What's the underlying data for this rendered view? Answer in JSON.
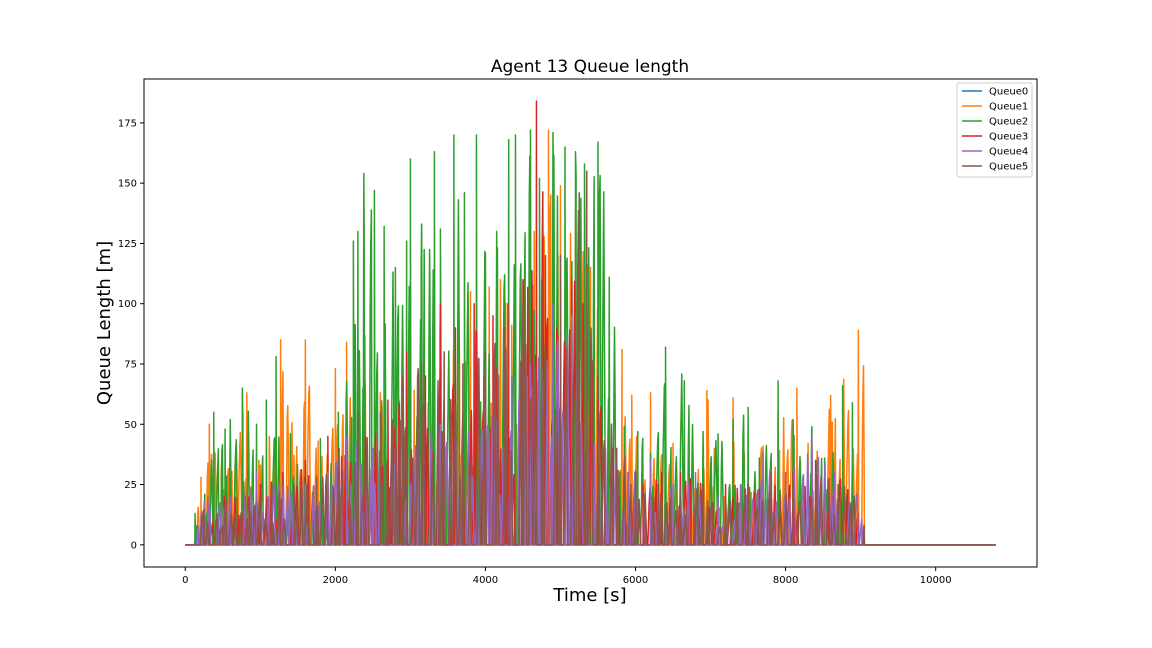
{
  "chart_data": {
    "type": "line",
    "title": "Agent 13 Queue length",
    "xlabel": "Time [s]",
    "ylabel": "Queue Length [m]",
    "xlim": [
      -550,
      11350
    ],
    "ylim": [
      -9.2,
      193.2
    ],
    "xticks": [
      0,
      2000,
      4000,
      6000,
      8000,
      10000
    ],
    "yticks": [
      0,
      25,
      50,
      75,
      100,
      125,
      150,
      175
    ],
    "legend_position": "top-right",
    "grid": false,
    "total_duration": 10800,
    "series": [
      {
        "name": "Queue0",
        "color": "#1f77b4",
        "x": [
          0,
          10800
        ],
        "values": [
          0,
          0
        ]
      },
      {
        "name": "Queue1",
        "color": "#ff7f0e",
        "active_range": [
          150,
          9050
        ],
        "seed": 11,
        "density": 0.55,
        "peaks": [
          [
            210,
            28
          ],
          [
            320,
            50
          ],
          [
            480,
            33
          ],
          [
            600,
            43
          ],
          [
            820,
            63
          ],
          [
            1000,
            33
          ],
          [
            1120,
            45
          ],
          [
            1270,
            85
          ],
          [
            1450,
            37
          ],
          [
            1600,
            85
          ],
          [
            1770,
            43
          ],
          [
            2000,
            73
          ],
          [
            2150,
            84
          ],
          [
            2400,
            67
          ],
          [
            2600,
            63
          ],
          [
            2850,
            60
          ],
          [
            3050,
            64
          ],
          [
            3300,
            90
          ],
          [
            3450,
            77
          ],
          [
            3650,
            93
          ],
          [
            3800,
            105
          ],
          [
            4050,
            107
          ],
          [
            4200,
            110
          ],
          [
            4350,
            91
          ],
          [
            4500,
            73
          ],
          [
            4650,
            130
          ],
          [
            4840,
            172
          ],
          [
            5000,
            149
          ],
          [
            5200,
            137
          ],
          [
            5400,
            115
          ],
          [
            5650,
            54
          ],
          [
            5820,
            81
          ],
          [
            5950,
            62
          ],
          [
            6200,
            63
          ],
          [
            6500,
            42
          ],
          [
            6650,
            28
          ],
          [
            6950,
            64
          ],
          [
            7050,
            40
          ],
          [
            7300,
            61
          ],
          [
            7450,
            38
          ],
          [
            7700,
            41
          ],
          [
            7900,
            55
          ],
          [
            8150,
            65
          ],
          [
            8300,
            42
          ],
          [
            8600,
            62
          ],
          [
            8970,
            89
          ],
          [
            9050,
            69
          ]
        ]
      },
      {
        "name": "Queue2",
        "color": "#2ca02c",
        "active_range": [
          120,
          8900
        ],
        "seed": 23,
        "density": 0.6,
        "peaks": [
          [
            130,
            13
          ],
          [
            260,
            21
          ],
          [
            380,
            55
          ],
          [
            530,
            48
          ],
          [
            760,
            65
          ],
          [
            950,
            50
          ],
          [
            1080,
            60
          ],
          [
            1210,
            78
          ],
          [
            1400,
            46
          ],
          [
            1590,
            28
          ],
          [
            1800,
            44
          ],
          [
            2040,
            55
          ],
          [
            2240,
            126
          ],
          [
            2300,
            130
          ],
          [
            2380,
            154
          ],
          [
            2520,
            147
          ],
          [
            2650,
            132
          ],
          [
            2800,
            115
          ],
          [
            2950,
            126
          ],
          [
            3000,
            160
          ],
          [
            3150,
            133
          ],
          [
            3320,
            163
          ],
          [
            3400,
            131
          ],
          [
            3580,
            170
          ],
          [
            3720,
            146
          ],
          [
            3880,
            170
          ],
          [
            4000,
            121
          ],
          [
            4150,
            130
          ],
          [
            4310,
            168
          ],
          [
            4400,
            170
          ],
          [
            4600,
            172
          ],
          [
            4720,
            152
          ],
          [
            4900,
            171
          ],
          [
            5060,
            165
          ],
          [
            5200,
            163
          ],
          [
            5320,
            158
          ],
          [
            5500,
            167
          ],
          [
            5650,
            111
          ],
          [
            5850,
            49
          ],
          [
            6030,
            47
          ],
          [
            6200,
            38
          ],
          [
            6400,
            82
          ],
          [
            6650,
            68
          ],
          [
            6900,
            47
          ],
          [
            7100,
            46
          ],
          [
            7300,
            52
          ],
          [
            7500,
            57
          ],
          [
            7650,
            36
          ],
          [
            7900,
            68
          ],
          [
            8100,
            52
          ],
          [
            8350,
            49
          ],
          [
            8520,
            36
          ],
          [
            8760,
            66
          ],
          [
            8890,
            59
          ]
        ]
      },
      {
        "name": "Queue3",
        "color": "#d62728",
        "active_range": [
          300,
          9050
        ],
        "seed": 37,
        "density": 0.5,
        "peaks": [
          [
            320,
            12
          ],
          [
            520,
            20
          ],
          [
            800,
            20
          ],
          [
            1000,
            25
          ],
          [
            1300,
            30
          ],
          [
            1600,
            35
          ],
          [
            1900,
            45
          ],
          [
            2130,
            37
          ],
          [
            2400,
            45
          ],
          [
            2700,
            60
          ],
          [
            2950,
            80
          ],
          [
            3200,
            70
          ],
          [
            3400,
            100
          ],
          [
            3600,
            90
          ],
          [
            3850,
            100
          ],
          [
            4100,
            95
          ],
          [
            4300,
            100
          ],
          [
            4500,
            110
          ],
          [
            4680,
            184
          ],
          [
            4800,
            120
          ],
          [
            4950,
            90
          ],
          [
            5150,
            110
          ],
          [
            5300,
            100
          ],
          [
            5500,
            60
          ],
          [
            5700,
            40
          ],
          [
            5900,
            30
          ],
          [
            6100,
            25
          ],
          [
            6350,
            30
          ],
          [
            6600,
            30
          ],
          [
            6900,
            25
          ],
          [
            7200,
            25
          ],
          [
            7500,
            25
          ],
          [
            7800,
            30
          ],
          [
            8100,
            30
          ],
          [
            8400,
            35
          ],
          [
            8650,
            30
          ],
          [
            9050,
            24
          ]
        ]
      },
      {
        "name": "Queue4",
        "color": "#9467bd",
        "active_range": [
          150,
          9050
        ],
        "seed": 53,
        "density": 0.5,
        "peaks": [
          [
            300,
            20
          ],
          [
            600,
            20
          ],
          [
            950,
            30
          ],
          [
            1250,
            25
          ],
          [
            1600,
            25
          ],
          [
            1900,
            30
          ],
          [
            2150,
            45
          ],
          [
            2500,
            40
          ],
          [
            2800,
            40
          ],
          [
            3100,
            45
          ],
          [
            3400,
            50
          ],
          [
            3700,
            55
          ],
          [
            4000,
            60
          ],
          [
            4350,
            70
          ],
          [
            4600,
            75
          ],
          [
            4900,
            100
          ],
          [
            5150,
            95
          ],
          [
            5350,
            60
          ],
          [
            5600,
            40
          ],
          [
            5900,
            30
          ],
          [
            6200,
            35
          ],
          [
            6500,
            25
          ],
          [
            6800,
            30
          ],
          [
            7100,
            20
          ],
          [
            7400,
            25
          ],
          [
            7700,
            38
          ],
          [
            8000,
            30
          ],
          [
            8350,
            45
          ],
          [
            8650,
            30
          ],
          [
            9050,
            28
          ]
        ]
      },
      {
        "name": "Queue5",
        "color": "#8c564b",
        "active_range": [
          200,
          9050
        ],
        "seed": 71,
        "density": 0.5,
        "peaks": [
          [
            250,
            15
          ],
          [
            550,
            18
          ],
          [
            850,
            18
          ],
          [
            1150,
            25
          ],
          [
            1450,
            25
          ],
          [
            1750,
            28
          ],
          [
            2050,
            40
          ],
          [
            2300,
            55
          ],
          [
            2600,
            55
          ],
          [
            2900,
            70
          ],
          [
            3150,
            75
          ],
          [
            3450,
            80
          ],
          [
            3700,
            75
          ],
          [
            4000,
            80
          ],
          [
            4250,
            90
          ],
          [
            4500,
            100
          ],
          [
            4750,
            110
          ],
          [
            5000,
            120
          ],
          [
            5250,
            146
          ],
          [
            5350,
            155
          ],
          [
            5500,
            70
          ],
          [
            5750,
            40
          ],
          [
            6000,
            30
          ],
          [
            6300,
            25
          ],
          [
            6600,
            25
          ],
          [
            6900,
            25
          ],
          [
            7200,
            20
          ],
          [
            7500,
            25
          ],
          [
            7800,
            25
          ],
          [
            8100,
            25
          ],
          [
            8400,
            30
          ],
          [
            8700,
            25
          ],
          [
            9050,
            25
          ]
        ]
      }
    ]
  }
}
